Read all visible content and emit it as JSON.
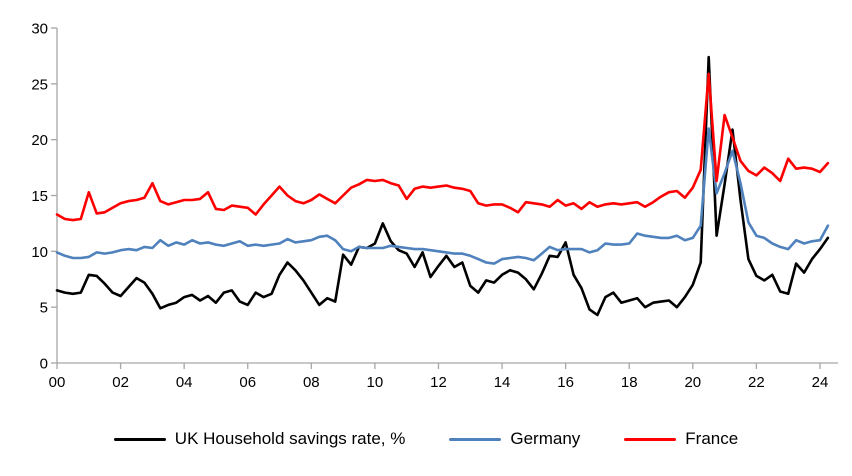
{
  "chart_data": {
    "type": "line",
    "title": "",
    "frequency": "quarterly",
    "x_start_year": 2000.0,
    "x_step_years": 0.25,
    "grid": false,
    "legend_position": "bottom",
    "x_axis": {
      "tick_labels": [
        "00",
        "02",
        "04",
        "06",
        "08",
        "10",
        "12",
        "14",
        "16",
        "18",
        "20",
        "22",
        "24"
      ],
      "tick_year_offsets": [
        0,
        2,
        4,
        6,
        8,
        10,
        12,
        14,
        16,
        18,
        20,
        22,
        24
      ],
      "range_year_offsets": [
        0,
        24.6
      ]
    },
    "y_axis": {
      "ticks": [
        0,
        5,
        10,
        15,
        20,
        25,
        30
      ],
      "range": [
        0,
        30
      ]
    },
    "axis_color": "#a6a6a6",
    "series": [
      {
        "name": "UK Household savings rate, %",
        "color": "#000000",
        "values": [
          6.5,
          6.3,
          6.2,
          6.3,
          7.9,
          7.8,
          7.1,
          6.3,
          6.0,
          6.8,
          7.6,
          7.2,
          6.2,
          4.9,
          5.2,
          5.4,
          5.9,
          6.1,
          5.6,
          6.0,
          5.4,
          6.3,
          6.5,
          5.5,
          5.2,
          6.3,
          5.9,
          6.2,
          7.9,
          9.0,
          8.3,
          7.4,
          6.3,
          5.2,
          5.8,
          5.5,
          9.7,
          8.8,
          10.4,
          10.3,
          10.7,
          12.5,
          10.9,
          10.1,
          9.8,
          8.6,
          9.9,
          7.7,
          8.7,
          9.6,
          8.6,
          9.0,
          6.9,
          6.3,
          7.4,
          7.2,
          7.9,
          8.3,
          8.1,
          7.5,
          6.6,
          8.0,
          9.6,
          9.5,
          10.8,
          7.9,
          6.7,
          4.8,
          4.3,
          5.9,
          6.3,
          5.4,
          5.6,
          5.8,
          5.0,
          5.4,
          5.5,
          5.6,
          5.0,
          5.9,
          7.0,
          9.0,
          27.4,
          11.4,
          16.0,
          20.9,
          14.6,
          9.3,
          7.8,
          7.4,
          7.9,
          6.4,
          6.2,
          8.9,
          8.1,
          9.3,
          10.2,
          11.2
        ]
      },
      {
        "name": "Germany",
        "color": "#4f81bd",
        "values": [
          9.9,
          9.6,
          9.4,
          9.4,
          9.5,
          9.9,
          9.8,
          9.9,
          10.1,
          10.2,
          10.1,
          10.4,
          10.3,
          11.0,
          10.5,
          10.8,
          10.6,
          11.0,
          10.7,
          10.8,
          10.6,
          10.5,
          10.7,
          10.9,
          10.5,
          10.6,
          10.5,
          10.6,
          10.7,
          11.1,
          10.8,
          10.9,
          11.0,
          11.3,
          11.4,
          11.0,
          10.2,
          10.0,
          10.4,
          10.3,
          10.3,
          10.3,
          10.5,
          10.4,
          10.3,
          10.2,
          10.2,
          10.1,
          10.0,
          9.9,
          9.8,
          9.8,
          9.6,
          9.3,
          9.0,
          8.9,
          9.3,
          9.4,
          9.5,
          9.4,
          9.2,
          9.8,
          10.4,
          10.1,
          10.2,
          10.2,
          10.2,
          9.9,
          10.1,
          10.7,
          10.6,
          10.6,
          10.7,
          11.6,
          11.4,
          11.3,
          11.2,
          11.2,
          11.4,
          11.0,
          11.2,
          12.3,
          21.0,
          15.2,
          17.0,
          19.0,
          16.1,
          12.6,
          11.4,
          11.2,
          10.7,
          10.4,
          10.2,
          11.0,
          10.7,
          10.9,
          11.0,
          12.3
        ]
      },
      {
        "name": "France",
        "color": "#fe0000",
        "values": [
          13.3,
          12.9,
          12.8,
          12.9,
          15.3,
          13.4,
          13.5,
          13.9,
          14.3,
          14.5,
          14.6,
          14.8,
          16.1,
          14.5,
          14.2,
          14.4,
          14.6,
          14.6,
          14.7,
          15.3,
          13.8,
          13.7,
          14.1,
          14.0,
          13.9,
          13.3,
          14.2,
          15.0,
          15.8,
          15.0,
          14.5,
          14.3,
          14.6,
          15.1,
          14.7,
          14.3,
          15.0,
          15.7,
          16.0,
          16.4,
          16.3,
          16.4,
          16.1,
          15.9,
          14.7,
          15.6,
          15.8,
          15.7,
          15.8,
          15.9,
          15.7,
          15.6,
          15.4,
          14.3,
          14.1,
          14.2,
          14.2,
          13.9,
          13.5,
          14.4,
          14.3,
          14.2,
          14.0,
          14.6,
          14.1,
          14.3,
          13.8,
          14.4,
          14.0,
          14.2,
          14.3,
          14.2,
          14.3,
          14.4,
          14.0,
          14.4,
          14.9,
          15.3,
          15.4,
          14.8,
          15.7,
          17.3,
          25.9,
          16.3,
          22.2,
          20.2,
          18.1,
          17.2,
          16.8,
          17.5,
          17.0,
          16.3,
          18.3,
          17.4,
          17.5,
          17.4,
          17.1,
          17.9
        ]
      }
    ]
  }
}
